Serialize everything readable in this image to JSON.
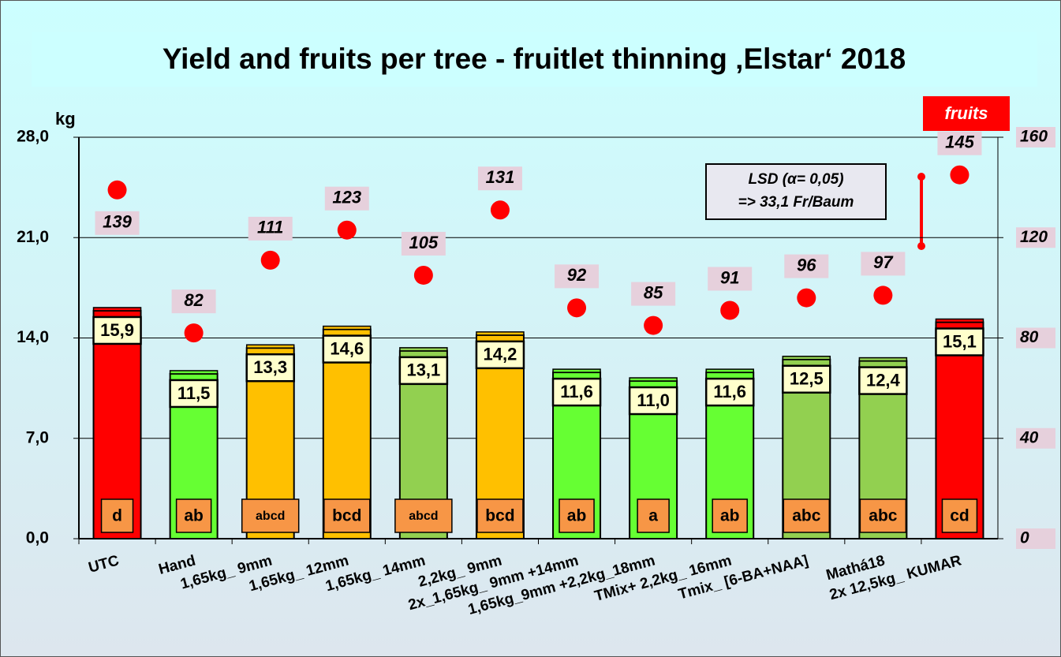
{
  "chart_data": {
    "type": "bar",
    "title": "Yield and fruits per tree  - fruitlet thinning ‚Elstar‘ 2018",
    "y_axis_label": "kg",
    "categories": [
      "UTC",
      "Hand",
      "1,65kg_ 9mm",
      "1,65kg_ 12mm",
      "1,65kg_ 14mm",
      "2,2kg_ 9mm",
      "2x_1,65kg_ 9mm +14mm",
      "1,65kg_9mm +2,2kg_18mm",
      "TMix+ 2,2kg_ 16mm",
      "Tmix_ [6-BA+NAA]",
      "Mathá18",
      "2x 12,5kg_ KUMAR"
    ],
    "series": [
      {
        "name": "kg",
        "values": [
          15.9,
          11.5,
          13.3,
          14.6,
          13.1,
          14.2,
          11.6,
          11.0,
          11.6,
          12.5,
          12.4,
          15.1
        ],
        "value_labels": [
          "15,9",
          "11,5",
          "13,3",
          "14,6",
          "13,1",
          "14,2",
          "11,6",
          "11,0",
          "11,6",
          "12,5",
          "12,4",
          "15,1"
        ],
        "colors": [
          "#ff0000",
          "#66ff33",
          "#ffc000",
          "#ffc000",
          "#92d050",
          "#ffc000",
          "#66ff33",
          "#66ff33",
          "#66ff33",
          "#92d050",
          "#92d050",
          "#ff0000"
        ],
        "significance": [
          "d",
          "ab",
          "abcd",
          "bcd",
          "abcd",
          "bcd",
          "ab",
          "a",
          "ab",
          "abc",
          "abc",
          "cd"
        ]
      },
      {
        "name": "fruits",
        "axis": "y2",
        "color": "#ff0000",
        "values": [
          139,
          82,
          111,
          123,
          105,
          131,
          92,
          85,
          91,
          96,
          97,
          145
        ]
      }
    ],
    "ylim": [
      0,
      28
    ],
    "yticks": [
      {
        "value": 0,
        "label": "0,0"
      },
      {
        "value": 7,
        "label": "7,0"
      },
      {
        "value": 14,
        "label": "14,0"
      },
      {
        "value": 21,
        "label": "21,0"
      },
      {
        "value": 28,
        "label": "28,0"
      }
    ],
    "y2lim": [
      0,
      160
    ],
    "y2ticks": [
      0,
      40,
      80,
      120,
      160
    ],
    "grid": true,
    "annotation": [
      "LSD (α= 0,05)",
      "=> 33,1 Fr/Baum"
    ]
  }
}
